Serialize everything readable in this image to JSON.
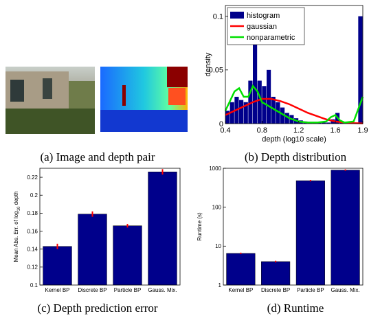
{
  "image_panel": {
    "caption": "(a) Image and depth pair"
  },
  "chart_data": [
    {
      "type": "histogram",
      "caption": "(b) Depth distribution",
      "xlabel": "depth (log10 scale)",
      "ylabel": "density",
      "name": "histogram",
      "color": "#00008b",
      "bins": [
        0.4,
        0.45,
        0.5,
        0.55,
        0.6,
        0.65,
        0.7,
        0.75,
        0.8,
        0.85,
        0.9,
        0.95,
        1.0,
        1.05,
        1.1,
        1.15,
        1.2,
        1.25,
        1.3,
        1.35,
        1.4,
        1.45,
        1.5,
        1.55,
        1.6,
        1.65,
        1.7,
        1.75,
        1.8,
        1.85,
        1.9
      ],
      "values": [
        0.012,
        0.02,
        0.025,
        0.022,
        0.02,
        0.04,
        0.1,
        0.04,
        0.035,
        0.05,
        0.025,
        0.02,
        0.015,
        0.01,
        0.008,
        0.005,
        0.003,
        0.002,
        0.001,
        0.001,
        0.001,
        0.001,
        0.001,
        0.004,
        0.01,
        0.001,
        0.001,
        0.001,
        0.001,
        0.1
      ],
      "series": [
        {
          "name": "gaussian",
          "color": "#ff0000",
          "x": [
            0.4,
            0.5,
            0.6,
            0.7,
            0.8,
            0.9,
            1.0,
            1.1,
            1.2,
            1.3,
            1.4,
            1.5,
            1.6,
            1.7,
            1.8,
            1.9
          ],
          "values": [
            0.008,
            0.012,
            0.016,
            0.02,
            0.023,
            0.023,
            0.021,
            0.018,
            0.014,
            0.01,
            0.007,
            0.004,
            0.002,
            0.001,
            0.0005,
            0.0002
          ]
        },
        {
          "name": "nonparametric",
          "color": "#00e000",
          "x": [
            0.4,
            0.5,
            0.55,
            0.6,
            0.65,
            0.7,
            0.75,
            0.8,
            0.9,
            1.0,
            1.1,
            1.2,
            1.3,
            1.4,
            1.5,
            1.55,
            1.6,
            1.65,
            1.7,
            1.8,
            1.9
          ],
          "values": [
            0.012,
            0.03,
            0.033,
            0.025,
            0.025,
            0.035,
            0.03,
            0.02,
            0.015,
            0.01,
            0.005,
            0.002,
            0.001,
            0.001,
            0.002,
            0.006,
            0.008,
            0.003,
            0.001,
            0.002,
            0.025
          ]
        }
      ],
      "xlim": [
        0.4,
        1.9
      ],
      "xticks": [
        0.4,
        0.8,
        1.2,
        1.6,
        1.9
      ],
      "ylim": [
        0,
        0.11
      ],
      "yticks": [
        0,
        0.05,
        0.1
      ],
      "legend": "upper-left"
    },
    {
      "type": "bar",
      "caption": "(c) Depth prediction error",
      "ylabel_parts": [
        "Mean Abs. Err. of log",
        "10",
        " depth"
      ],
      "categories": [
        "Kernel BP",
        "Discrete BP",
        "Particle BP",
        "Gauss. Mix."
      ],
      "values": [
        0.143,
        0.179,
        0.166,
        0.226
      ],
      "errors": [
        0.003,
        0.003,
        0.002,
        0.003
      ],
      "color": "#00008b",
      "error_color": "#ff0000",
      "ylim": [
        0.1,
        0.23
      ],
      "yticks": [
        0.1,
        0.12,
        0.14,
        0.16,
        0.18,
        0.2,
        0.22
      ],
      "log": false
    },
    {
      "type": "bar",
      "caption": "(d) Runtime",
      "ylabel": "Runtime (s)",
      "categories": [
        "Kernel BP",
        "Discrete BP",
        "Particle BP",
        "Gauss. Mix."
      ],
      "values": [
        6.5,
        4,
        480,
        900
      ],
      "errors": [
        0.3,
        0.2,
        20,
        40
      ],
      "color": "#00008b",
      "error_color": "#ff0000",
      "ylim": [
        1,
        1000
      ],
      "yticks": [
        1,
        10,
        100,
        1000
      ],
      "log": true
    }
  ]
}
